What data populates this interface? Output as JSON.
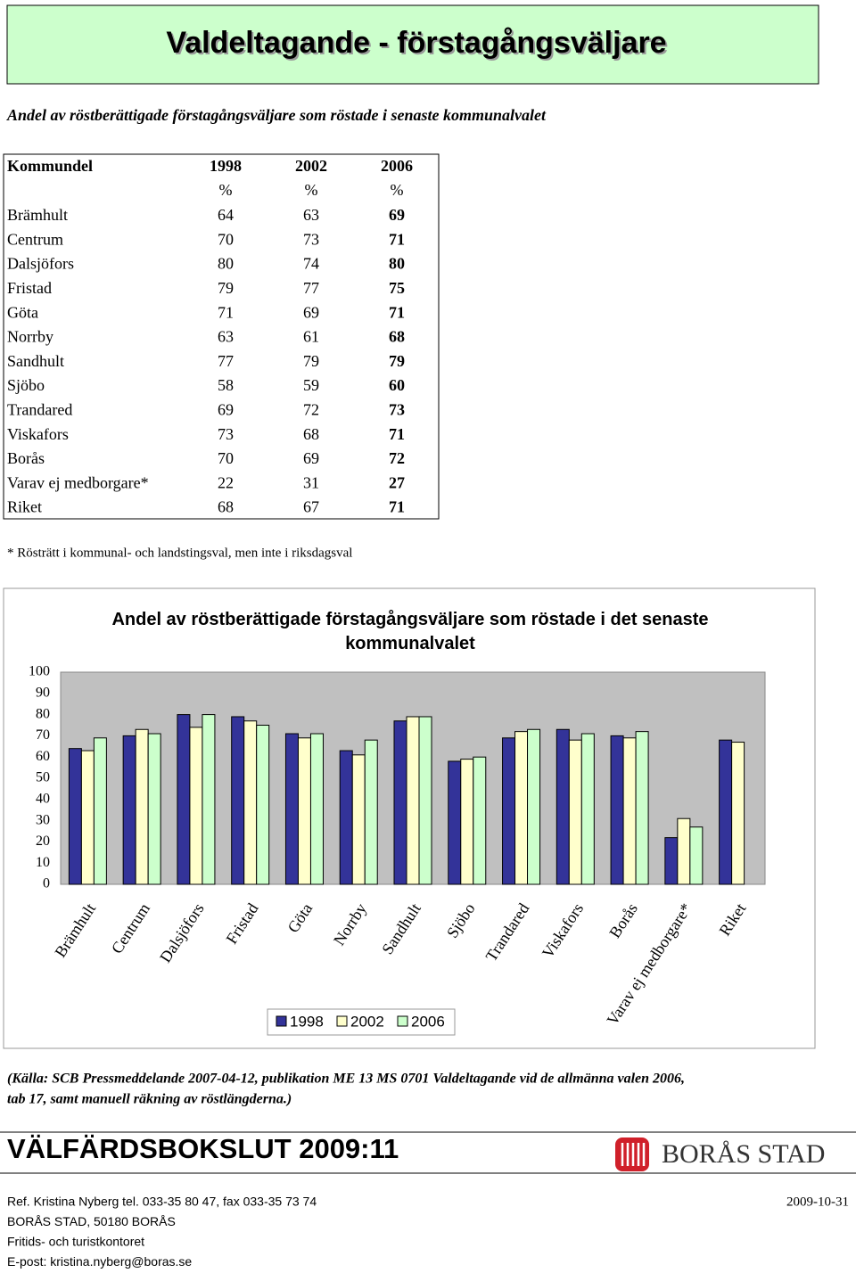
{
  "title": "Valdeltagande - förstagångsväljare",
  "subtitle": "Andel av röstberättigade förstagångsväljare som röstade i senaste kommunalvalet",
  "table": {
    "header": [
      "Kommundel",
      "1998",
      "2002",
      "2006"
    ],
    "units": [
      "%",
      "%",
      "%"
    ],
    "rows": [
      [
        "Brämhult",
        64,
        63,
        69
      ],
      [
        "Centrum",
        70,
        73,
        71
      ],
      [
        "Dalsjöfors",
        80,
        74,
        80
      ],
      [
        "Fristad",
        79,
        77,
        75
      ],
      [
        "Göta",
        71,
        69,
        71
      ],
      [
        "Norrby",
        63,
        61,
        68
      ],
      [
        "Sandhult",
        77,
        79,
        79
      ],
      [
        "Sjöbo",
        58,
        59,
        60
      ],
      [
        "Trandared",
        69,
        72,
        73
      ],
      [
        "Viskafors",
        73,
        68,
        71
      ],
      [
        "Borås",
        70,
        69,
        72
      ],
      [
        "Varav ej medborgare*",
        22,
        31,
        27
      ],
      [
        "Riket",
        68,
        67,
        71
      ]
    ]
  },
  "footnote": "* Rösträtt i kommunal- och landstingsval, men inte i riksdagsval",
  "chart_data": {
    "type": "bar",
    "title": "Andel av röstberättigade förstagångsväljare som röstade i det senaste kommunalvalet",
    "categories": [
      "Brämhult",
      "Centrum",
      "Dalsjöfors",
      "Fristad",
      "Göta",
      "Norrby",
      "Sandhult",
      "Sjöbo",
      "Trandared",
      "Viskafors",
      "Borås",
      "Varav ej medborgare*",
      "Riket"
    ],
    "series": [
      {
        "name": "1998",
        "color": "#333399",
        "values": [
          64,
          70,
          80,
          79,
          71,
          63,
          77,
          58,
          69,
          73,
          70,
          22,
          68
        ]
      },
      {
        "name": "2002",
        "color": "#FFFFCC",
        "values": [
          63,
          73,
          74,
          77,
          69,
          61,
          79,
          59,
          72,
          68,
          69,
          31,
          67
        ]
      },
      {
        "name": "2006",
        "color": "#CCFFCC",
        "values": [
          69,
          71,
          80,
          75,
          71,
          68,
          79,
          60,
          73,
          71,
          72,
          27,
          null
        ]
      }
    ],
    "ylim": [
      0,
      100
    ],
    "yticks": [
      0,
      10,
      20,
      30,
      40,
      50,
      60,
      70,
      80,
      90,
      100
    ],
    "grid": false,
    "legend": "bottom",
    "plot_background": "#C0C0C0"
  },
  "source": [
    "(Källa: SCB Pressmeddelande 2007-04-12, publikation ME 13 MS 0701 Valdeltagande vid de allmänna valen 2006,",
    "tab 17, samt manuell räkning av röstlängderna.)"
  ],
  "report": "VÄLFÄRDSBOKSLUT 2009:11",
  "logo_text": "BORÅS STAD",
  "footer": {
    "lines": [
      "Ref. Kristina Nyberg tel. 033-35 80 47, fax 033-35 73 74",
      "BORÅS STAD, 50180 BORÅS",
      "Fritids- och turistkontoret",
      "E-post: kristina.nyberg@boras.se"
    ],
    "date": "2009-10-31"
  }
}
